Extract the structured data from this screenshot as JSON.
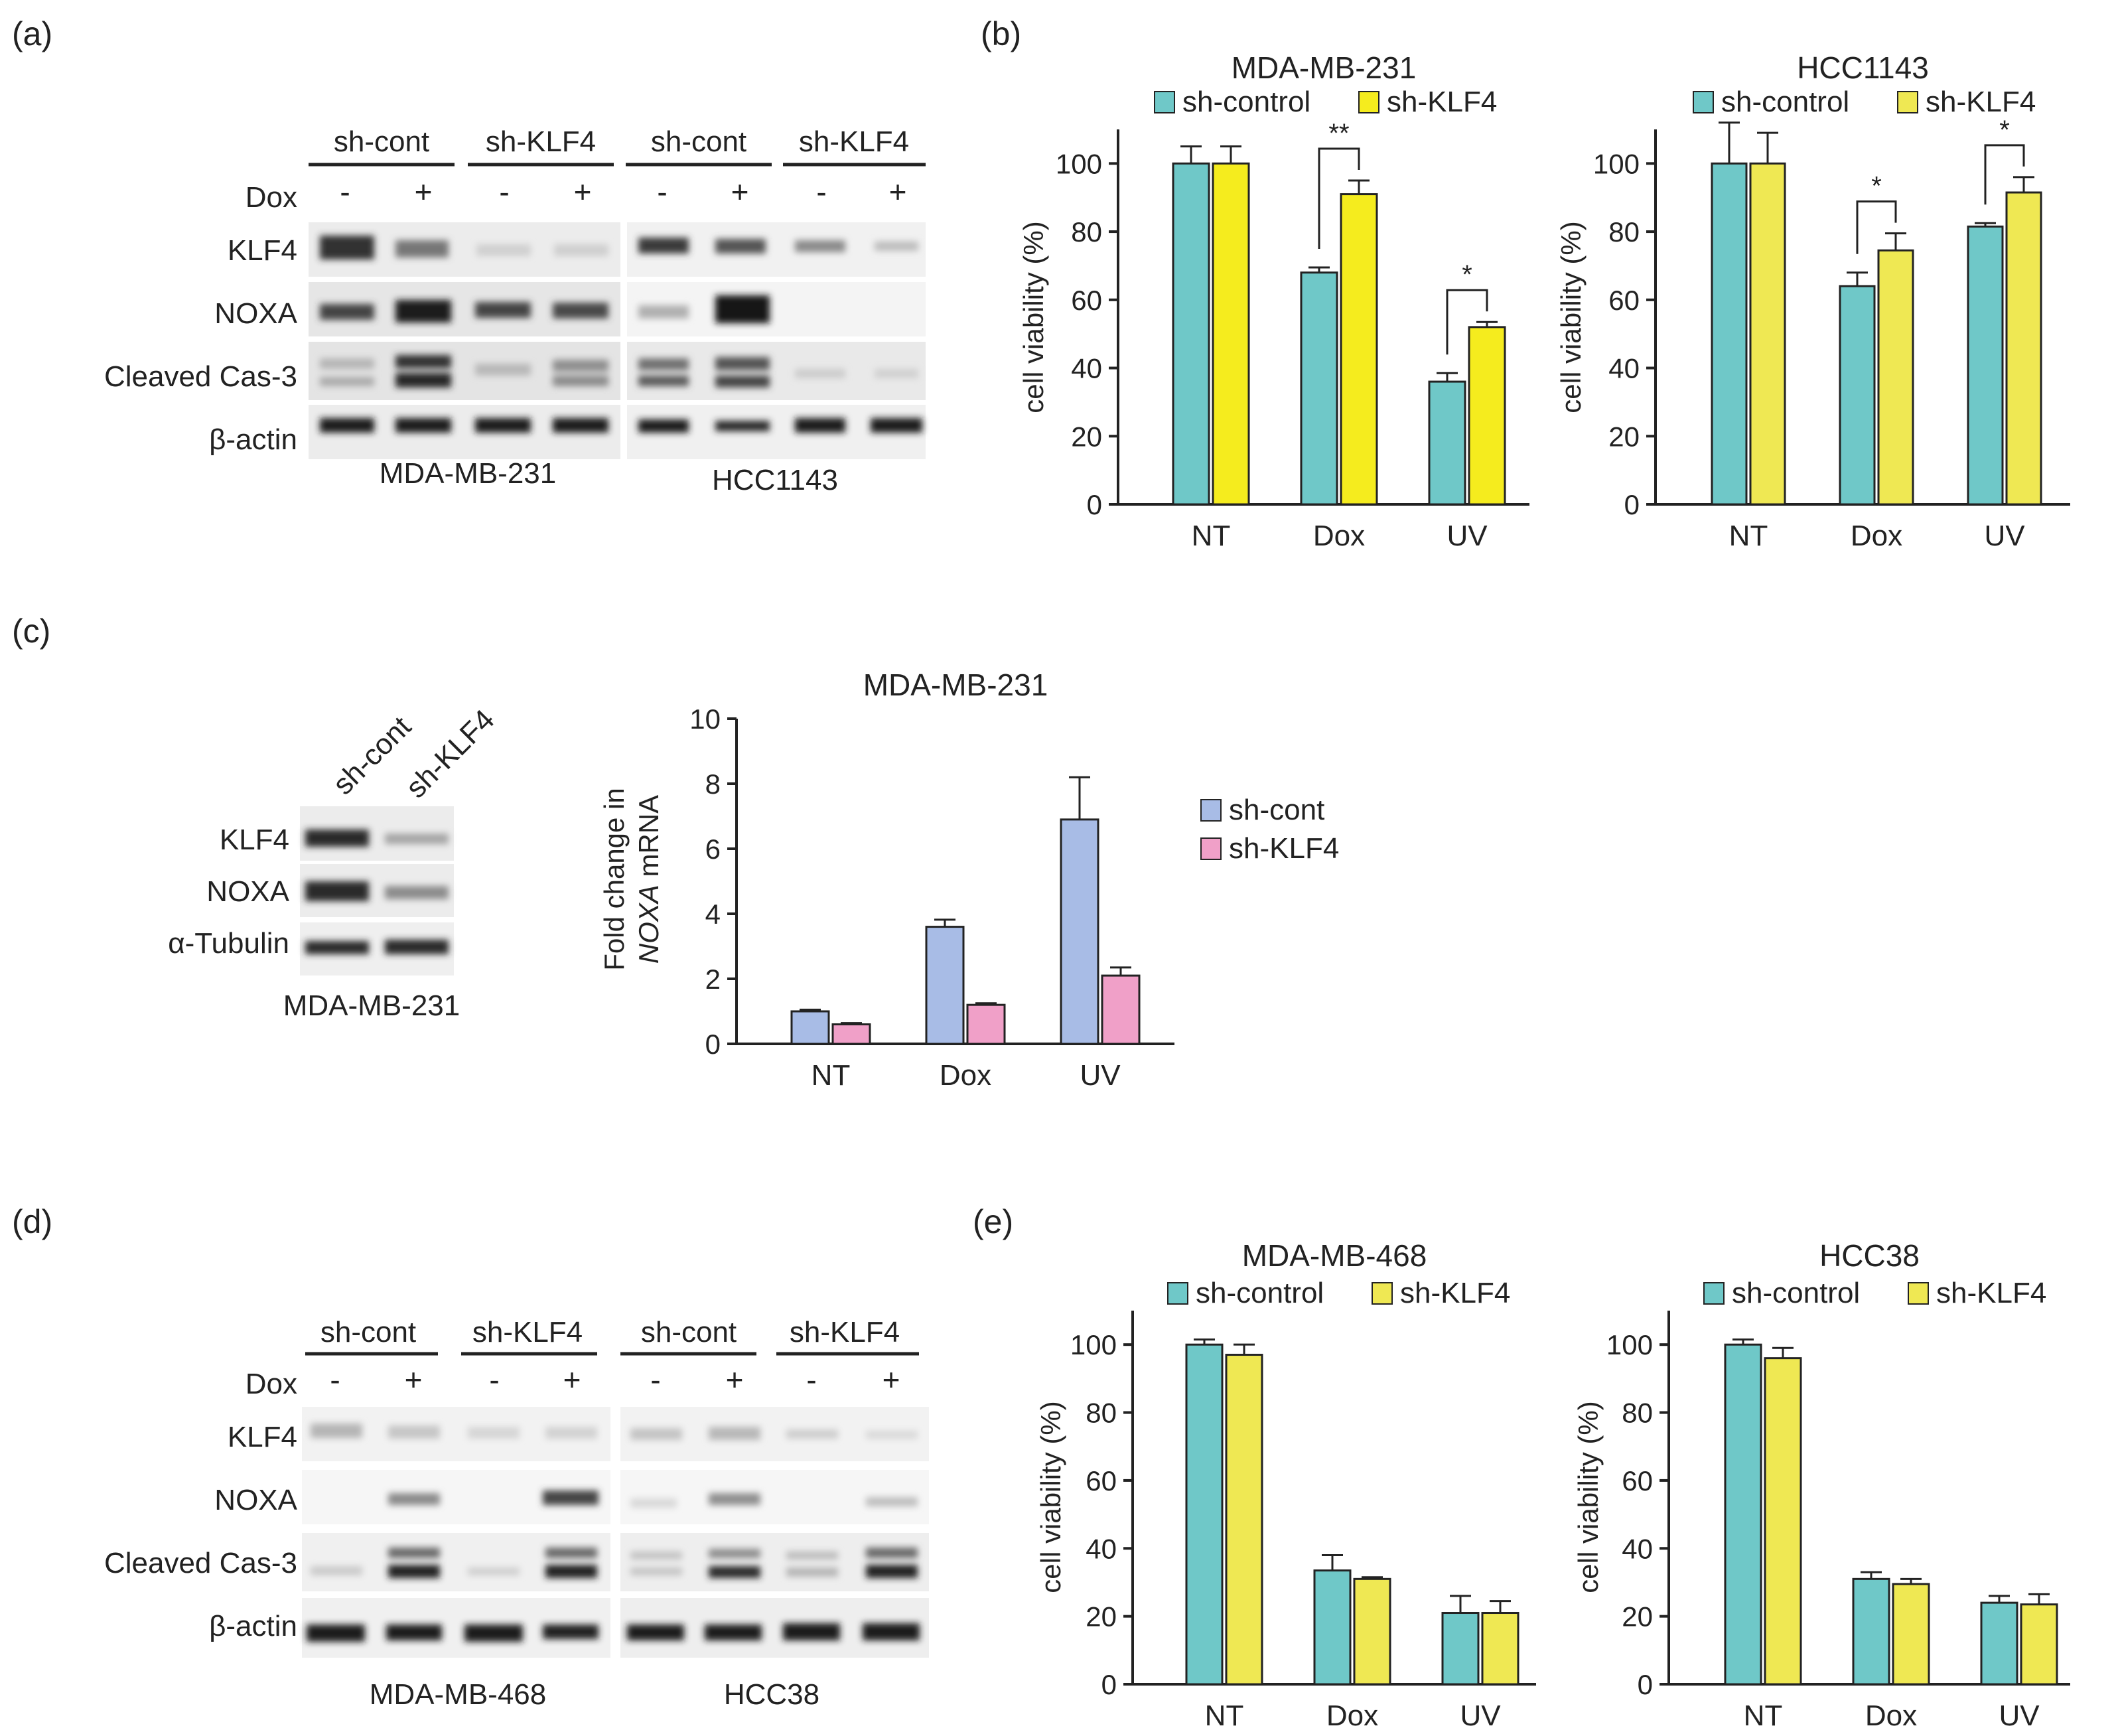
{
  "panels": {
    "a": {
      "label": "(a)",
      "blot_groups": [
        {
          "cell_line": "MDA-MB-231",
          "groups": [
            "sh-cont",
            "sh-KLF4"
          ]
        },
        {
          "cell_line": "HCC1143",
          "groups": [
            "sh-cont",
            "sh-KLF4"
          ]
        }
      ],
      "dox_label": "Dox",
      "dox_signs": [
        "-",
        "+",
        "-",
        "+",
        "-",
        "+",
        "-",
        "+"
      ],
      "rows": [
        "KLF4",
        "NOXA",
        "Cleaved Cas-3",
        "β-actin"
      ]
    },
    "b": {
      "label": "(b)"
    },
    "c": {
      "label": "(c)",
      "blot_groups": [
        "sh-cont",
        "sh-KLF4"
      ],
      "rows": [
        "KLF4",
        "NOXA",
        "α-Tubulin"
      ],
      "cell_line": "MDA-MB-231"
    },
    "d": {
      "label": "(d)",
      "blot_groups": [
        {
          "cell_line": "MDA-MB-468",
          "groups": [
            "sh-cont",
            "sh-KLF4"
          ]
        },
        {
          "cell_line": "HCC38",
          "groups": [
            "sh-cont",
            "sh-KLF4"
          ]
        }
      ],
      "dox_label": "Dox",
      "dox_signs": [
        "-",
        "+",
        "-",
        "+",
        "-",
        "+",
        "-",
        "+"
      ],
      "rows": [
        "KLF4",
        "NOXA",
        "Cleaved Cas-3",
        "β-actin"
      ]
    },
    "e": {
      "label": "(e)"
    }
  },
  "colors": {
    "teal": "#6fc8c8",
    "yellow_b": "#f5ec1e",
    "yellow": "#efe853",
    "blue": "#a8bce6",
    "pink": "#f0a0c8",
    "axis": "#222222"
  },
  "chart_data": [
    {
      "id": "b1",
      "type": "bar",
      "title": "MDA-MB-231",
      "categories": [
        "NT",
        "Dox",
        "UV"
      ],
      "series": [
        {
          "name": "sh-control",
          "values": [
            100,
            68,
            36
          ],
          "errors": [
            5,
            1.5,
            2.5
          ]
        },
        {
          "name": "sh-KLF4",
          "values": [
            100,
            91,
            52
          ],
          "errors": [
            5,
            4,
            1.5
          ]
        }
      ],
      "ylabel": "cell viability (%)",
      "xlabel": "",
      "ylim": [
        0,
        110
      ],
      "yticks": [
        0,
        20,
        40,
        60,
        80,
        100
      ],
      "significance": [
        {
          "category": "Dox",
          "label": "**"
        },
        {
          "category": "UV",
          "label": "*"
        }
      ]
    },
    {
      "id": "b2",
      "type": "bar",
      "title": "HCC1143",
      "categories": [
        "NT",
        "Dox",
        "UV"
      ],
      "series": [
        {
          "name": "sh-control",
          "values": [
            100,
            64,
            81.5
          ],
          "errors": [
            12,
            4,
            1
          ]
        },
        {
          "name": "sh-KLF4",
          "values": [
            100,
            74.5,
            91.5
          ],
          "errors": [
            9,
            5,
            4.5
          ]
        }
      ],
      "ylabel": "cell viability (%)",
      "xlabel": "",
      "ylim": [
        0,
        110
      ],
      "yticks": [
        0,
        20,
        40,
        60,
        80,
        100
      ],
      "significance": [
        {
          "category": "Dox",
          "label": "*"
        },
        {
          "category": "UV",
          "label": "*"
        }
      ]
    },
    {
      "id": "c1",
      "type": "bar",
      "title": "MDA-MB-231",
      "categories": [
        "NT",
        "Dox",
        "UV"
      ],
      "series": [
        {
          "name": "sh-cont",
          "values": [
            1.0,
            3.6,
            6.9
          ],
          "errors": [
            0.05,
            0.22,
            1.3
          ]
        },
        {
          "name": "sh-KLF4",
          "values": [
            0.6,
            1.2,
            2.1
          ],
          "errors": [
            0.04,
            0.05,
            0.25
          ]
        }
      ],
      "ylabel_line1": "Fold change in",
      "ylabel_line2_italic": "NOXA",
      "ylabel_line2_rest": " mRNA",
      "xlabel": "",
      "ylim": [
        0,
        10
      ],
      "yticks": [
        0,
        2,
        4,
        6,
        8,
        10
      ],
      "legend": "right"
    },
    {
      "id": "e1",
      "type": "bar",
      "title": "MDA-MB-468",
      "categories": [
        "NT",
        "Dox",
        "UV"
      ],
      "series": [
        {
          "name": "sh-control",
          "values": [
            100,
            33.5,
            21
          ],
          "errors": [
            1.5,
            4.5,
            5
          ]
        },
        {
          "name": "sh-KLF4",
          "values": [
            97,
            31,
            21
          ],
          "errors": [
            3,
            0.5,
            3.5
          ]
        }
      ],
      "ylabel": "cell viability (%)",
      "xlabel": "",
      "ylim": [
        0,
        110
      ],
      "yticks": [
        0,
        20,
        40,
        60,
        80,
        100
      ]
    },
    {
      "id": "e2",
      "type": "bar",
      "title": "HCC38",
      "categories": [
        "NT",
        "Dox",
        "UV"
      ],
      "series": [
        {
          "name": "sh-control",
          "values": [
            100,
            31,
            24
          ],
          "errors": [
            1.5,
            2,
            2
          ]
        },
        {
          "name": "sh-KLF4",
          "values": [
            96,
            29.5,
            23.5
          ],
          "errors": [
            3,
            1.5,
            3
          ]
        }
      ],
      "ylabel": "cell viability (%)",
      "xlabel": "",
      "ylim": [
        0,
        110
      ],
      "yticks": [
        0,
        20,
        40,
        60,
        80,
        100
      ]
    }
  ]
}
